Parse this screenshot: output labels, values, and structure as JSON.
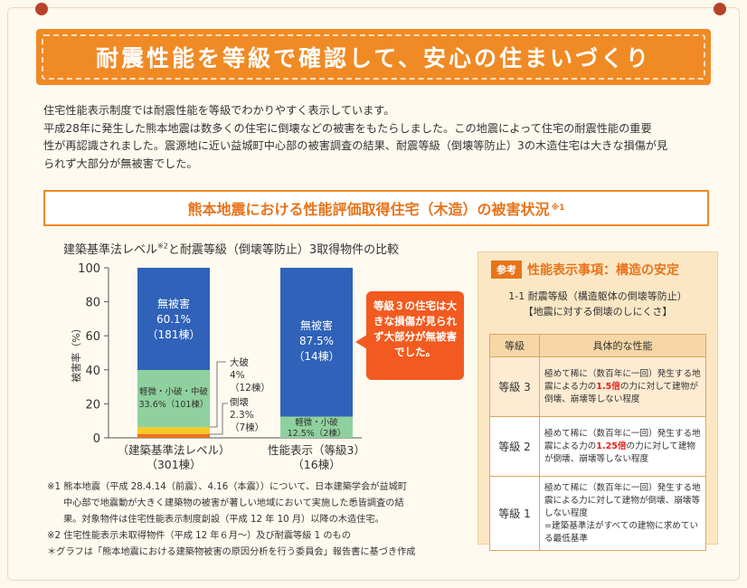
{
  "header": {
    "title": "耐震性能を等級で確認して、安心の住まいづくり"
  },
  "intro": {
    "line1": "住宅性能表示制度では耐震性能を等級でわかりやすく表示しています。",
    "line2": "平成28年に発生した熊本地震は数多くの住宅に倒壊などの被害をもたらしました。この地震によって住宅の耐震性能の重要",
    "line3": "性が再認識されました。震源地に近い益城町中心部の被害調査の結果、耐震等級（倒壊等防止）3の木造住宅は大きな損傷が見",
    "line4": "られず大部分が無被害でした。"
  },
  "subtitle": {
    "text": "熊本地震における性能評価取得住宅（木造）の被害状況",
    "note": "※1"
  },
  "chart_title": {
    "pre": "建築基準法レベル",
    "note": "※2",
    "post": "と耐震等級（倒壊等防止）3取得物件の比較"
  },
  "chart_data": {
    "type": "bar",
    "stacked": true,
    "ylabel": "被害率（%）",
    "ylim": [
      0,
      100
    ],
    "yticks": [
      0,
      20,
      40,
      60,
      80,
      100
    ],
    "categories": [
      {
        "label": "（建築基準法レベル）",
        "count": "（301棟）"
      },
      {
        "label": "性能表示（等級3）",
        "count": "（16棟）"
      }
    ],
    "series": [
      {
        "name": "倒壊",
        "color": "#e8731a",
        "values": [
          2.3,
          0
        ]
      },
      {
        "name": "大破",
        "color": "#f5c928",
        "values": [
          4,
          0
        ]
      },
      {
        "name": "軽微・小破・中破",
        "color": "#8fd19e",
        "values": [
          33.6,
          12.5
        ]
      },
      {
        "name": "無被害",
        "color": "#2f62b8",
        "values": [
          60.1,
          87.5
        ]
      }
    ],
    "labels": {
      "bar1_none": [
        "無被害",
        "60.1%",
        "（181棟）"
      ],
      "bar1_minor": [
        "軽微・小破・中破",
        "33.6%（101棟）"
      ],
      "bar1_major": [
        "大破",
        "4%",
        "（12棟）"
      ],
      "bar1_collapse": [
        "倒壊",
        "2.3%",
        "（7棟）"
      ],
      "bar2_none": [
        "無被害",
        "87.5%",
        "（14棟）"
      ],
      "bar2_minor": [
        "軽微・小破",
        "12.5%（2棟）"
      ]
    }
  },
  "callout": {
    "text": "等級３の住宅は大きな損傷が見られず大部分が無被害でした。"
  },
  "notes": {
    "n1a": "※1 熊本地震（平成 28.4.14（前震）、4.16（本震））について、日本建築学会が益城町",
    "n1b": "中心部で地震動が大きく建築物の被害が著しい地域において実施した悉皆調査の結",
    "n1c": "果。対象物件は住宅性能表示制度創設（平成 12 年 10 月）以降の木造住宅。",
    "n2": "※2 住宅性能表示未取得物件（平成 12 年６月～）及び耐震等級 1 のもの",
    "n3": "＊グラフは「熊本地震における建築物被害の原因分析を行う委員会」報告書に基づき作成"
  },
  "ref": {
    "tag": "参考",
    "title": "性能表示事項：構造の安定",
    "sub1": "1-1 耐震等級（構造躯体の倒壊等防止）",
    "sub2": "【地震に対する倒壊のしにくさ】",
    "col_grade": "等級",
    "col_perf": "具体的な性能",
    "rows": [
      {
        "grade": "等級 3",
        "pre": "極めて稀に（数百年に一回）発生する地震による力の",
        "hl": "1.5倍",
        "post": "の力に対して建物が倒壊、崩壊等しない程度"
      },
      {
        "grade": "等級 2",
        "pre": "極めて稀に（数百年に一回）発生する地震による力の",
        "hl": "1.25倍",
        "post": "の力に対して建物が倒壊、崩壊等しない程度"
      },
      {
        "grade": "等級 1",
        "pre": "極めて稀に（数百年に一回）発生する地震による力に対して建物が倒壊、崩壊等しない程度",
        "hl": "",
        "post": "=建築基準法がすべての建物に求めている最低基準"
      }
    ]
  }
}
